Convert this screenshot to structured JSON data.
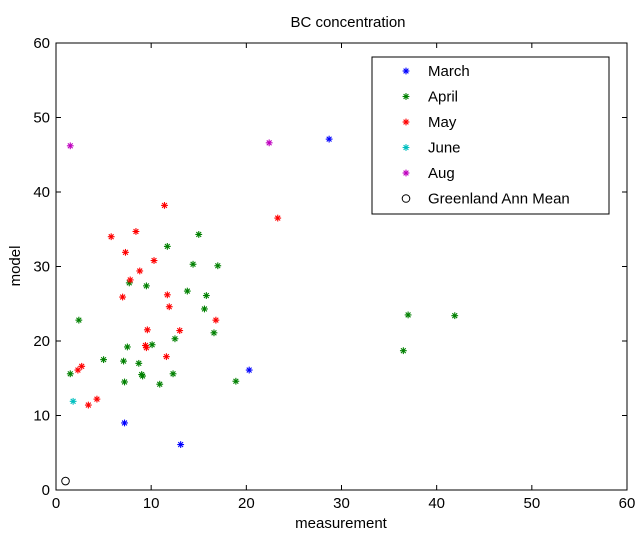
{
  "chart_data": {
    "type": "scatter",
    "title": "BC concentration",
    "xlabel": "measurement",
    "ylabel": "model",
    "xlim": [
      0,
      60
    ],
    "ylim": [
      0,
      60
    ],
    "xticks": [
      0,
      10,
      20,
      30,
      40,
      50,
      60
    ],
    "yticks": [
      0,
      10,
      20,
      30,
      40,
      50,
      60
    ],
    "grid": false,
    "legend_position": "top-right",
    "series": [
      {
        "name": "March",
        "marker": "asterisk",
        "color": "#0000ff",
        "points": [
          [
            28.7,
            47.1
          ],
          [
            20.3,
            16.1
          ],
          [
            7.2,
            9.0
          ],
          [
            13.1,
            6.1
          ]
        ]
      },
      {
        "name": "April",
        "marker": "asterisk",
        "color": "#008000",
        "points": [
          [
            1.5,
            15.6
          ],
          [
            2.4,
            22.8
          ],
          [
            5.0,
            17.5
          ],
          [
            7.1,
            17.3
          ],
          [
            7.2,
            14.5
          ],
          [
            7.5,
            19.2
          ],
          [
            7.7,
            27.8
          ],
          [
            8.7,
            17.0
          ],
          [
            9.0,
            15.5
          ],
          [
            9.1,
            15.3
          ],
          [
            9.5,
            27.4
          ],
          [
            10.1,
            19.5
          ],
          [
            10.9,
            14.2
          ],
          [
            11.7,
            32.7
          ],
          [
            12.3,
            15.6
          ],
          [
            12.5,
            20.3
          ],
          [
            13.8,
            26.7
          ],
          [
            14.4,
            30.3
          ],
          [
            15.0,
            34.3
          ],
          [
            15.6,
            24.3
          ],
          [
            15.8,
            26.1
          ],
          [
            16.6,
            21.1
          ],
          [
            17.0,
            30.1
          ],
          [
            18.9,
            14.6
          ],
          [
            36.5,
            18.7
          ],
          [
            37.0,
            23.5
          ],
          [
            41.9,
            23.4
          ]
        ]
      },
      {
        "name": "May",
        "marker": "asterisk",
        "color": "#ff0000",
        "points": [
          [
            2.3,
            16.1
          ],
          [
            2.7,
            16.6
          ],
          [
            3.4,
            11.4
          ],
          [
            4.3,
            12.2
          ],
          [
            5.8,
            34.0
          ],
          [
            7.0,
            25.9
          ],
          [
            7.3,
            31.9
          ],
          [
            7.8,
            28.2
          ],
          [
            8.4,
            34.7
          ],
          [
            8.8,
            29.4
          ],
          [
            9.4,
            19.4
          ],
          [
            9.5,
            19.1
          ],
          [
            9.6,
            21.5
          ],
          [
            10.3,
            30.8
          ],
          [
            11.4,
            38.2
          ],
          [
            11.7,
            26.2
          ],
          [
            11.9,
            24.6
          ],
          [
            11.6,
            17.9
          ],
          [
            13.0,
            21.4
          ],
          [
            16.8,
            22.8
          ],
          [
            23.3,
            36.5
          ]
        ]
      },
      {
        "name": "June",
        "marker": "asterisk",
        "color": "#00bfbf",
        "points": [
          [
            1.8,
            11.9
          ]
        ]
      },
      {
        "name": "Aug",
        "marker": "asterisk",
        "color": "#bf00bf",
        "points": [
          [
            1.5,
            46.2
          ],
          [
            22.4,
            46.6
          ]
        ]
      },
      {
        "name": "Greenland Ann Mean",
        "marker": "circle",
        "color": "#000000",
        "points": [
          [
            1.0,
            1.2
          ]
        ]
      }
    ]
  }
}
